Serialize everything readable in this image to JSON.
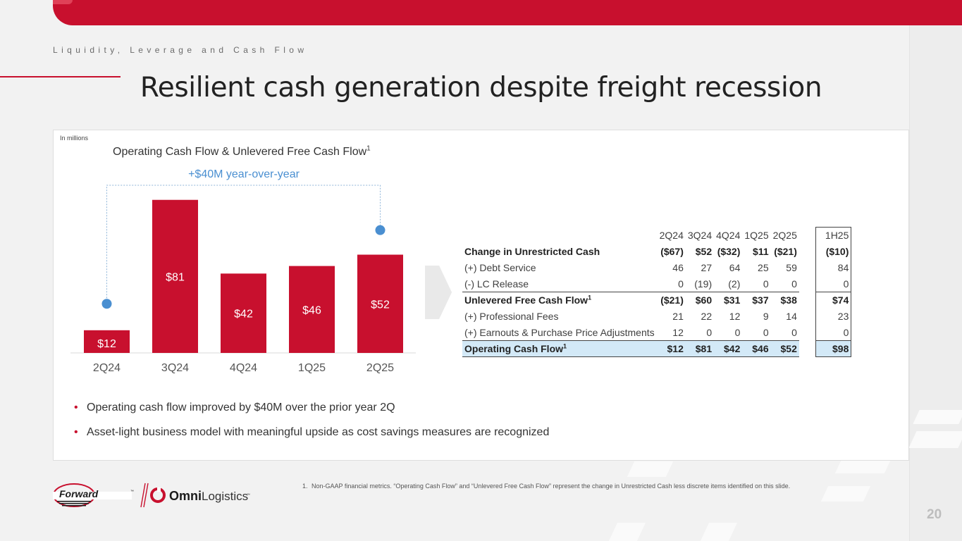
{
  "header": {
    "section_label": "Liquidity, Leverage and Cash Flow",
    "title": "Resilient cash generation despite freight recession"
  },
  "chart_note": "In millions",
  "chart_data": {
    "type": "bar",
    "title": "Operating Cash Flow & Unlevered Free Cash Flow",
    "title_superscript": "1",
    "annotation": "+$40M year-over-year",
    "categories": [
      "2Q24",
      "3Q24",
      "4Q24",
      "1Q25",
      "2Q25"
    ],
    "values": [
      12,
      81,
      42,
      46,
      52
    ],
    "value_labels": [
      "$12",
      "$81",
      "$42",
      "$46",
      "$52"
    ],
    "ylim": [
      0,
      85
    ],
    "bracket_points": [
      {
        "category": "2Q24",
        "value": 26
      },
      {
        "category": "2Q25",
        "value": 65
      }
    ],
    "bar_color": "#c8102e",
    "annotation_color": "#4a8fd1"
  },
  "table": {
    "columns": [
      "2Q24",
      "3Q24",
      "4Q24",
      "1Q25",
      "2Q25"
    ],
    "total_column": "1H25",
    "rows": [
      {
        "label": "Change in Unrestricted Cash",
        "sup": "",
        "values": [
          "($67)",
          "$52",
          "($32)",
          "$11",
          "($21)"
        ],
        "total": "($10)"
      },
      {
        "label": "(+) Debt Service",
        "sup": "",
        "values": [
          "46",
          "27",
          "64",
          "25",
          "59"
        ],
        "total": "84"
      },
      {
        "label": "(-) LC Release",
        "sup": "",
        "values": [
          "0",
          "(19)",
          "(2)",
          "0",
          "0"
        ],
        "total": "0"
      },
      {
        "label": "Unlevered Free Cash Flow",
        "sup": "1",
        "values": [
          "($21)",
          "$60",
          "$31",
          "$37",
          "$38"
        ],
        "total": "$74"
      },
      {
        "label": "(+) Professional Fees",
        "sup": "",
        "values": [
          "21",
          "22",
          "12",
          "9",
          "14"
        ],
        "total": "23"
      },
      {
        "label": "(+) Earnouts & Purchase Price Adjustments",
        "sup": "",
        "values": [
          "12",
          "0",
          "0",
          "0",
          "0"
        ],
        "total": "0"
      },
      {
        "label": "Operating Cash Flow",
        "sup": "1",
        "values": [
          "$12",
          "$81",
          "$42",
          "$46",
          "$52"
        ],
        "total": "$98"
      }
    ]
  },
  "bullets": [
    "Operating cash flow improved by $40M over the prior year 2Q",
    "Asset-light business model with meaningful upside as cost savings measures are recognized"
  ],
  "logos": {
    "forward": "Forward",
    "forward_tm": "™",
    "omni_bold": "Omni",
    "omni_light": "Logistics",
    "omni_tm": "™"
  },
  "footnote": {
    "number": "1.",
    "text": "Non-GAAP financial metrics. “Operating Cash Flow” and “Unlevered Free Cash Flow” represent the change in Unrestricted Cash less discrete items identified on this slide."
  },
  "page_number": "20",
  "colors": {
    "brand_red": "#c8102e",
    "highlight_blue": "#d3e9f7"
  }
}
